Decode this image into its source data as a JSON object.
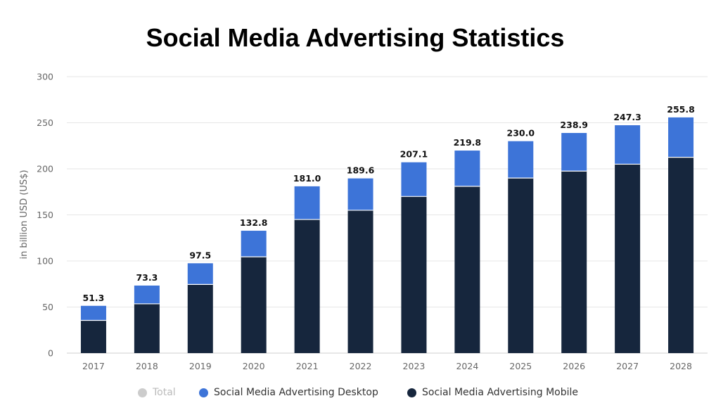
{
  "chart_data": {
    "type": "bar",
    "stacked": true,
    "title": "Social Media Advertising Statistics",
    "ylabel": "in billion USD (US$)",
    "xlabel": "",
    "ylim": [
      0,
      300
    ],
    "yticks": [
      0,
      50,
      100,
      150,
      200,
      250,
      300
    ],
    "grid": true,
    "legend_position": "bottom",
    "categories": [
      "2017",
      "2018",
      "2019",
      "2020",
      "2021",
      "2022",
      "2023",
      "2024",
      "2025",
      "2026",
      "2027",
      "2028"
    ],
    "series": [
      {
        "name": "Social Media Advertising Mobile",
        "color": "#16263d",
        "values": [
          35.5,
          53.5,
          74.5,
          104.5,
          145.0,
          155.0,
          170.0,
          181.0,
          190.0,
          197.5,
          205.0,
          212.5
        ]
      },
      {
        "name": "Social Media Advertising Desktop",
        "color": "#3d74d8",
        "values": [
          15.8,
          19.8,
          23.0,
          28.3,
          36.0,
          34.6,
          37.1,
          38.8,
          40.0,
          41.4,
          42.3,
          43.3
        ]
      }
    ],
    "totals": [
      "51.3",
      "73.3",
      "97.5",
      "132.8",
      "181.0",
      "189.6",
      "207.1",
      "219.8",
      "230.0",
      "238.9",
      "247.3",
      "255.8"
    ]
  },
  "legend": [
    {
      "label": "Total",
      "color": "#cccccc",
      "text_color": "#bbbbbb"
    },
    {
      "label": "Social Media Advertising Desktop",
      "color": "#3d74d8",
      "text_color": "#333333"
    },
    {
      "label": "Social Media Advertising Mobile",
      "color": "#16263d",
      "text_color": "#333333"
    }
  ]
}
